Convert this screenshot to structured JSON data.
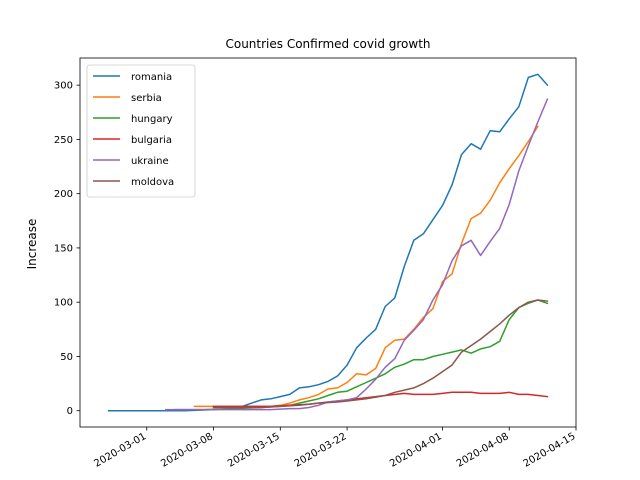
{
  "chart_data": {
    "type": "line",
    "title": "Countries Confirmed covid growth",
    "xlabel": "",
    "ylabel": "Increase",
    "ylim": [
      -15,
      325
    ],
    "xlim": [
      "2020-02-23",
      "2020-04-15"
    ],
    "yticks": [
      0,
      50,
      100,
      150,
      200,
      250,
      300
    ],
    "xticks": [
      "2020-03-01",
      "2020-03-08",
      "2020-03-15",
      "2020-03-22",
      "2020-04-01",
      "2020-04-08",
      "2020-04-15"
    ],
    "grid": false,
    "legend_position": "top-left",
    "series": [
      {
        "name": "romania",
        "color": "#1f77b4",
        "points": [
          [
            "2020-02-26",
            0
          ],
          [
            "2020-02-29",
            0
          ],
          [
            "2020-03-02",
            0
          ],
          [
            "2020-03-05",
            0
          ],
          [
            "2020-03-08",
            1
          ],
          [
            "2020-03-10",
            2
          ],
          [
            "2020-03-11",
            4
          ],
          [
            "2020-03-12",
            7
          ],
          [
            "2020-03-13",
            10
          ],
          [
            "2020-03-14",
            11
          ],
          [
            "2020-03-15",
            13
          ],
          [
            "2020-03-16",
            15
          ],
          [
            "2020-03-17",
            21
          ],
          [
            "2020-03-18",
            22
          ],
          [
            "2020-03-19",
            24
          ],
          [
            "2020-03-20",
            27
          ],
          [
            "2020-03-21",
            32
          ],
          [
            "2020-03-22",
            42
          ],
          [
            "2020-03-23",
            58
          ],
          [
            "2020-03-24",
            67
          ],
          [
            "2020-03-25",
            75
          ],
          [
            "2020-03-26",
            96
          ],
          [
            "2020-03-27",
            104
          ],
          [
            "2020-03-28",
            133
          ],
          [
            "2020-03-29",
            157
          ],
          [
            "2020-03-30",
            163
          ],
          [
            "2020-03-31",
            176
          ],
          [
            "2020-04-01",
            189
          ],
          [
            "2020-04-02",
            208
          ],
          [
            "2020-04-03",
            236
          ],
          [
            "2020-04-04",
            246
          ],
          [
            "2020-04-05",
            241
          ],
          [
            "2020-04-06",
            258
          ],
          [
            "2020-04-07",
            257
          ],
          [
            "2020-04-08",
            269
          ],
          [
            "2020-04-09",
            280
          ],
          [
            "2020-04-10",
            307
          ],
          [
            "2020-04-11",
            310
          ],
          [
            "2020-04-12",
            300
          ]
        ]
      },
      {
        "name": "serbia",
        "color": "#ff7f0e",
        "points": [
          [
            "2020-03-06",
            4
          ],
          [
            "2020-03-09",
            4
          ],
          [
            "2020-03-12",
            4
          ],
          [
            "2020-03-14",
            4
          ],
          [
            "2020-03-15",
            5
          ],
          [
            "2020-03-16",
            7
          ],
          [
            "2020-03-17",
            10
          ],
          [
            "2020-03-18",
            12
          ],
          [
            "2020-03-19",
            15
          ],
          [
            "2020-03-20",
            20
          ],
          [
            "2020-03-21",
            21
          ],
          [
            "2020-03-22",
            26
          ],
          [
            "2020-03-23",
            34
          ],
          [
            "2020-03-24",
            33
          ],
          [
            "2020-03-25",
            39
          ],
          [
            "2020-03-26",
            58
          ],
          [
            "2020-03-27",
            65
          ],
          [
            "2020-03-28",
            66
          ],
          [
            "2020-03-29",
            75
          ],
          [
            "2020-03-30",
            86
          ],
          [
            "2020-03-31",
            94
          ],
          [
            "2020-04-01",
            119
          ],
          [
            "2020-04-02",
            126
          ],
          [
            "2020-04-03",
            154
          ],
          [
            "2020-04-04",
            177
          ],
          [
            "2020-04-05",
            182
          ],
          [
            "2020-04-06",
            194
          ],
          [
            "2020-04-07",
            210
          ],
          [
            "2020-04-08",
            223
          ],
          [
            "2020-04-09",
            235
          ],
          [
            "2020-04-10",
            248
          ],
          [
            "2020-04-11",
            262
          ]
        ]
      },
      {
        "name": "hungary",
        "color": "#2ca02c",
        "points": [
          [
            "2020-03-04",
            1
          ],
          [
            "2020-03-07",
            1
          ],
          [
            "2020-03-10",
            2
          ],
          [
            "2020-03-13",
            3
          ],
          [
            "2020-03-15",
            4
          ],
          [
            "2020-03-16",
            5
          ],
          [
            "2020-03-17",
            7
          ],
          [
            "2020-03-18",
            9
          ],
          [
            "2020-03-19",
            11
          ],
          [
            "2020-03-20",
            14
          ],
          [
            "2020-03-21",
            17
          ],
          [
            "2020-03-22",
            18
          ],
          [
            "2020-03-23",
            22
          ],
          [
            "2020-03-24",
            26
          ],
          [
            "2020-03-25",
            30
          ],
          [
            "2020-03-26",
            34
          ],
          [
            "2020-03-27",
            40
          ],
          [
            "2020-03-28",
            43
          ],
          [
            "2020-03-29",
            47
          ],
          [
            "2020-03-30",
            47
          ],
          [
            "2020-03-31",
            50
          ],
          [
            "2020-04-01",
            52
          ],
          [
            "2020-04-02",
            54
          ],
          [
            "2020-04-03",
            56
          ],
          [
            "2020-04-04",
            53
          ],
          [
            "2020-04-05",
            57
          ],
          [
            "2020-04-06",
            59
          ],
          [
            "2020-04-07",
            64
          ],
          [
            "2020-04-08",
            84
          ],
          [
            "2020-04-09",
            95
          ],
          [
            "2020-04-10",
            99
          ],
          [
            "2020-04-11",
            102
          ],
          [
            "2020-04-12",
            99
          ]
        ]
      },
      {
        "name": "bulgaria",
        "color": "#d62728",
        "points": [
          [
            "2020-03-08",
            4
          ],
          [
            "2020-03-11",
            4
          ],
          [
            "2020-03-14",
            4
          ],
          [
            "2020-03-16",
            5
          ],
          [
            "2020-03-18",
            6
          ],
          [
            "2020-03-20",
            8
          ],
          [
            "2020-03-22",
            10
          ],
          [
            "2020-03-24",
            12
          ],
          [
            "2020-03-26",
            14
          ],
          [
            "2020-03-28",
            16
          ],
          [
            "2020-03-29",
            15
          ],
          [
            "2020-03-31",
            15
          ],
          [
            "2020-04-01",
            16
          ],
          [
            "2020-04-02",
            17
          ],
          [
            "2020-04-03",
            17
          ],
          [
            "2020-04-04",
            17
          ],
          [
            "2020-04-05",
            16
          ],
          [
            "2020-04-07",
            16
          ],
          [
            "2020-04-08",
            17
          ],
          [
            "2020-04-09",
            15
          ],
          [
            "2020-04-10",
            15
          ],
          [
            "2020-04-11",
            14
          ],
          [
            "2020-04-12",
            13
          ]
        ]
      },
      {
        "name": "ukraine",
        "color": "#9467bd",
        "points": [
          [
            "2020-03-03",
            1
          ],
          [
            "2020-03-06",
            1
          ],
          [
            "2020-03-09",
            1
          ],
          [
            "2020-03-12",
            1
          ],
          [
            "2020-03-14",
            1
          ],
          [
            "2020-03-16",
            2
          ],
          [
            "2020-03-17",
            2
          ],
          [
            "2020-03-18",
            3
          ],
          [
            "2020-03-19",
            5
          ],
          [
            "2020-03-20",
            8
          ],
          [
            "2020-03-21",
            9
          ],
          [
            "2020-03-22",
            10
          ],
          [
            "2020-03-23",
            12
          ],
          [
            "2020-03-24",
            20
          ],
          [
            "2020-03-25",
            29
          ],
          [
            "2020-03-26",
            40
          ],
          [
            "2020-03-27",
            48
          ],
          [
            "2020-03-28",
            65
          ],
          [
            "2020-03-29",
            74
          ],
          [
            "2020-03-30",
            84
          ],
          [
            "2020-03-31",
            102
          ],
          [
            "2020-04-01",
            116
          ],
          [
            "2020-04-02",
            138
          ],
          [
            "2020-04-03",
            152
          ],
          [
            "2020-04-04",
            157
          ],
          [
            "2020-04-05",
            143
          ],
          [
            "2020-04-06",
            156
          ],
          [
            "2020-04-07",
            168
          ],
          [
            "2020-04-08",
            190
          ],
          [
            "2020-04-09",
            221
          ],
          [
            "2020-04-10",
            244
          ],
          [
            "2020-04-11",
            266
          ],
          [
            "2020-04-12",
            287
          ]
        ]
      },
      {
        "name": "moldova",
        "color": "#8c564b",
        "points": [
          [
            "2020-03-08",
            3
          ],
          [
            "2020-03-11",
            3
          ],
          [
            "2020-03-13",
            3
          ],
          [
            "2020-03-15",
            4
          ],
          [
            "2020-03-17",
            5
          ],
          [
            "2020-03-19",
            7
          ],
          [
            "2020-03-21",
            8
          ],
          [
            "2020-03-22",
            9
          ],
          [
            "2020-03-24",
            11
          ],
          [
            "2020-03-26",
            14
          ],
          [
            "2020-03-27",
            17
          ],
          [
            "2020-03-28",
            19
          ],
          [
            "2020-03-29",
            21
          ],
          [
            "2020-03-30",
            25
          ],
          [
            "2020-03-31",
            30
          ],
          [
            "2020-04-01",
            36
          ],
          [
            "2020-04-02",
            42
          ],
          [
            "2020-04-03",
            54
          ],
          [
            "2020-04-04",
            60
          ],
          [
            "2020-04-05",
            66
          ],
          [
            "2020-04-06",
            73
          ],
          [
            "2020-04-07",
            80
          ],
          [
            "2020-04-08",
            88
          ],
          [
            "2020-04-09",
            95
          ],
          [
            "2020-04-10",
            100
          ],
          [
            "2020-04-11",
            102
          ],
          [
            "2020-04-12",
            101
          ]
        ]
      }
    ]
  }
}
